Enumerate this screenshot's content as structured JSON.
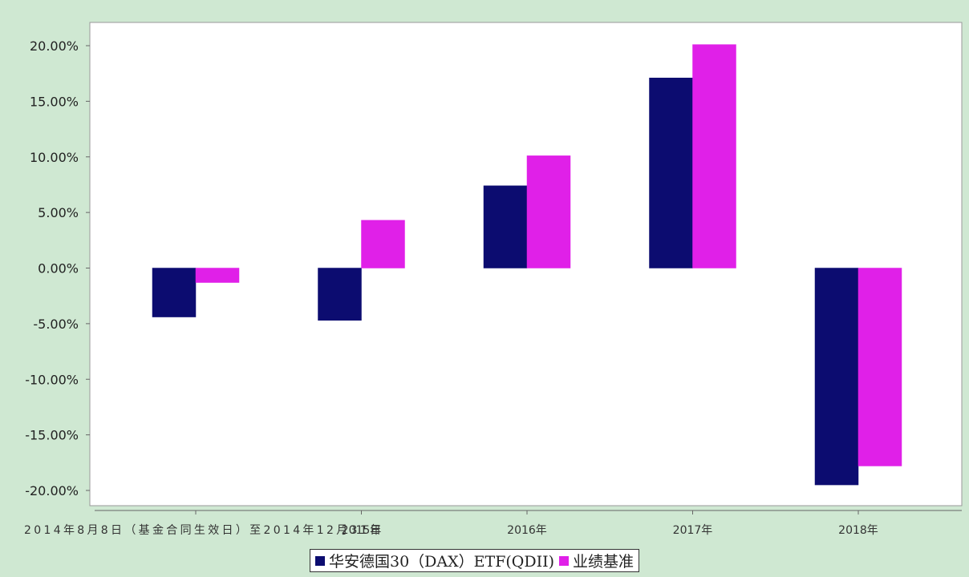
{
  "chart_data": {
    "type": "bar",
    "categories": [
      "2014年8月8日（基金合同生效日）至2014年12月31日",
      "2015年",
      "2016年",
      "2017年",
      "2018年"
    ],
    "series": [
      {
        "name": "华安德国30（DAX）ETF(QDII)",
        "color": "#0c0c70",
        "values": [
          -4.4,
          -4.7,
          7.4,
          17.1,
          -19.5
        ]
      },
      {
        "name": "业绩基准",
        "color": "#e020e8",
        "values": [
          -1.3,
          4.3,
          10.1,
          20.1,
          -17.8
        ]
      }
    ],
    "ylim": [
      -20,
      20
    ],
    "yticks": [
      "20.00%",
      "15.00%",
      "10.00%",
      "5.00%",
      "0.00%",
      "-5.00%",
      "-10.00%",
      "-15.00%",
      "-20.00%"
    ],
    "ytick_values": [
      20,
      15,
      10,
      5,
      0,
      -5,
      -10,
      -15,
      -20
    ],
    "title": "",
    "xlabel": "",
    "ylabel": "",
    "legend_position": "bottom-center",
    "grid": false
  }
}
